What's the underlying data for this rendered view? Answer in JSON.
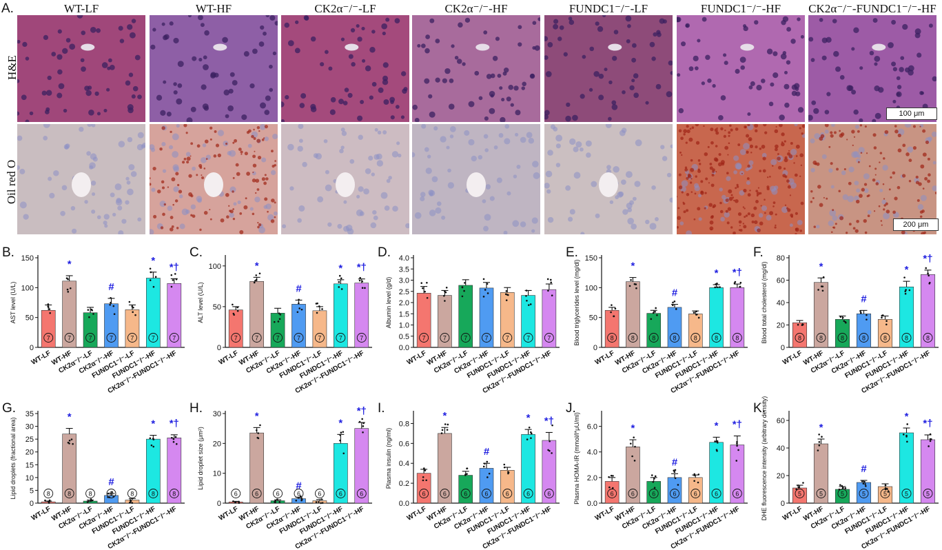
{
  "figure": {
    "panel_A_letter": "A.",
    "group_titles": [
      "WT-LF",
      "WT-HF",
      "CK2α⁻/⁻-LF",
      "CK2α⁻/⁻-HF",
      "FUNDC1⁻/⁻-LF",
      "FUNDC1⁻/⁻-HF",
      "CK2α⁻/⁻-FUNDC1⁻/⁻-HF"
    ],
    "row_labels": [
      "H&E",
      "Oil red O"
    ],
    "scalebar_he": "100 μm",
    "scalebar_oil": "200 μm",
    "colors": {
      "he_base": [
        "#a0477a",
        "#8e5fa6",
        "#a44a7c",
        "#a86b9c",
        "#8e4b79",
        "#b069b0",
        "#9d5ba6"
      ],
      "oil_base": [
        "#c9bdc0",
        "#d6a39c",
        "#cdbcc2",
        "#bfb5c2",
        "#cbbfc1",
        "#c8674e",
        "#c89483"
      ],
      "bars": [
        "#f4766f",
        "#cba79f",
        "#17a85a",
        "#4f9bf2",
        "#f6b88a",
        "#1de7e2",
        "#d588f0"
      ],
      "star_blue": "#1f1fe0"
    }
  },
  "chart_data": [
    {
      "panel": "B.",
      "type": "bar",
      "ylabel": "AST level (U/L)",
      "ylim": [
        0,
        150
      ],
      "yticks": [
        "0",
        "50",
        "100",
        "150"
      ],
      "categories": [
        "WT-LF",
        "WT-HF",
        "CK2α⁻/⁻-LF",
        "CK2α⁻/⁻-HF",
        "FUNDC1⁻/⁻-LF",
        "FUNDC1⁻/⁻-HF",
        "CK2α⁻/⁻-FUNDC1⁻/⁻-HF"
      ],
      "values": [
        62,
        111,
        58,
        73,
        63,
        116,
        107
      ],
      "errors": [
        9,
        9,
        9,
        9,
        8,
        10,
        8
      ],
      "n": [
        "7",
        "7",
        "7",
        "7",
        "7",
        "7",
        "7"
      ],
      "marks": [
        "",
        "*",
        "",
        "#",
        "",
        "*",
        "*†"
      ]
    },
    {
      "panel": "C.",
      "type": "bar",
      "ylabel": "ALT level (U/L)",
      "ylim": [
        0,
        110
      ],
      "yticks": [
        "0",
        "50",
        "100"
      ],
      "categories": [
        "WT-LF",
        "WT-HF",
        "CK2α⁻/⁻-LF",
        "CK2α⁻/⁻-HF",
        "FUNDC1⁻/⁻-LF",
        "FUNDC1⁻/⁻-HF",
        "CK2α⁻/⁻-FUNDC1⁻/⁻-HF"
      ],
      "values": [
        46,
        81,
        42,
        53,
        45,
        78,
        79
      ],
      "errors": [
        4,
        5,
        6,
        5,
        5,
        5,
        5
      ],
      "n": [
        "7",
        "7",
        "7",
        "7",
        "7",
        "7",
        "7"
      ],
      "marks": [
        "",
        "*",
        "",
        "#",
        "",
        "*",
        "*†"
      ]
    },
    {
      "panel": "D.",
      "type": "bar",
      "ylabel": "Albumin level (g/d)",
      "ylim": [
        0,
        4
      ],
      "yticks": [
        "0.0",
        "0.5",
        "1.0",
        "1.5",
        "2.0",
        "2.5",
        "3.0",
        "3.5",
        "4.0"
      ],
      "categories": [
        "WT-LF",
        "WT-HF",
        "CK2α⁻/⁻-LF",
        "CK2α⁻/⁻-HF",
        "FUNDC1⁻/⁻-LF",
        "FUNDC1⁻/⁻-HF",
        "CK2α⁻/⁻-FUNDC1⁻/⁻-HF"
      ],
      "values": [
        2.42,
        2.32,
        2.77,
        2.65,
        2.45,
        2.32,
        2.58
      ],
      "errors": [
        0.3,
        0.22,
        0.25,
        0.25,
        0.22,
        0.22,
        0.25
      ],
      "n": [
        "7",
        "7",
        "7",
        "7",
        "7",
        "7",
        "7"
      ],
      "marks": [
        "",
        "",
        "",
        "",
        "",
        "",
        ""
      ]
    },
    {
      "panel": "E.",
      "type": "bar",
      "ylabel": "Blood triglycerides level (mg/dl)",
      "ylim": [
        0,
        150
      ],
      "yticks": [
        "0",
        "50",
        "100",
        "150"
      ],
      "categories": [
        "WT-LF",
        "WT-HF",
        "CK2α⁻/⁻-LF",
        "CK2α⁻/⁻-HF",
        "FUNDC1⁻/⁻-LF",
        "FUNDC1⁻/⁻-HF",
        "CK2α⁻/⁻-FUNDC1⁻/⁻-HF"
      ],
      "values": [
        62,
        110,
        57,
        67,
        56,
        100,
        100
      ],
      "errors": [
        5,
        7,
        5,
        5,
        5,
        5,
        6
      ],
      "n": [
        "8",
        "8",
        "8",
        "8",
        "8",
        "8",
        "8"
      ],
      "marks": [
        "",
        "*",
        "",
        "#",
        "",
        "*",
        "*†"
      ]
    },
    {
      "panel": "F.",
      "type": "bar",
      "ylabel": "Blood total cholesterol (mg/dl)",
      "ylim": [
        0,
        80
      ],
      "yticks": [
        "0",
        "20",
        "40",
        "60",
        "80"
      ],
      "categories": [
        "WT-LF",
        "WT-HF",
        "CK2α⁻/⁻-LF",
        "CK2α⁻/⁻-HF",
        "FUNDC1⁻/⁻-LF",
        "FUNDC1⁻/⁻-HF",
        "CK2α⁻/⁻-FUNDC1⁻/⁻-HF"
      ],
      "values": [
        22,
        58,
        25,
        30,
        25,
        54,
        65
      ],
      "errors": [
        2,
        4,
        3,
        3,
        3,
        5,
        4
      ],
      "n": [
        "8",
        "8",
        "8",
        "8",
        "8",
        "8",
        "8"
      ],
      "marks": [
        "",
        "*",
        "",
        "#",
        "",
        "*",
        "*†"
      ]
    },
    {
      "panel": "G.",
      "type": "bar",
      "ylabel": "Lipid droplets (fractional area)",
      "ylim": [
        0,
        35
      ],
      "yticks": [
        "0",
        "5",
        "10",
        "15",
        "20",
        "25",
        "30",
        "35"
      ],
      "categories": [
        "WT-LF",
        "WT-HF",
        "CK2α⁻/⁻-LF",
        "CK2α⁻/⁻-HF",
        "FUNDC1⁻/⁻-LF",
        "FUNDC1⁻/⁻-HF",
        "CK2α⁻/⁻-FUNDC1⁻/⁻-HF"
      ],
      "values": [
        0.5,
        27,
        0.8,
        3,
        1.2,
        25,
        25.5
      ],
      "errors": [
        0.3,
        2.2,
        0.4,
        0.8,
        0.6,
        1.5,
        1.2
      ],
      "n": [
        "8",
        "8",
        "8",
        "8",
        "8",
        "8",
        "8"
      ],
      "marks": [
        "",
        "*",
        "",
        "#",
        "",
        "*",
        "*†"
      ]
    },
    {
      "panel": "H.",
      "type": "bar",
      "ylabel": "Lipid droplet size (μm²)",
      "ylim": [
        0,
        30
      ],
      "yticks": [
        "0",
        "10",
        "20",
        "30"
      ],
      "categories": [
        "WT-LF",
        "WT-HF",
        "CK2α⁻/⁻-LF",
        "CK2α⁻/⁻-HF",
        "FUNDC1⁻/⁻-LF",
        "FUNDC1⁻/⁻-HF",
        "CK2α⁻/⁻-FUNDC1⁻/⁻-HF"
      ],
      "values": [
        0.4,
        23.5,
        0.8,
        1.5,
        0.8,
        20,
        25
      ],
      "errors": [
        0.2,
        1.8,
        0.3,
        0.5,
        0.4,
        3,
        2
      ],
      "n": [
        "6",
        "6",
        "6",
        "6",
        "6",
        "6",
        "6"
      ],
      "marks": [
        "",
        "*",
        "",
        "#",
        "",
        "*",
        "*†"
      ]
    },
    {
      "panel": "I.",
      "type": "bar",
      "ylabel": "Plasma insulin (ng/ml)",
      "ylim": [
        0,
        0.9
      ],
      "yticks": [
        "0.0",
        "0.2",
        "0.4",
        "0.6",
        "0.8"
      ],
      "categories": [
        "WT-LF",
        "WT-HF",
        "CK2α⁻/⁻-LF",
        "CK2α⁻/⁻-HF",
        "FUNDC1⁻/⁻-LF",
        "FUNDC1⁻/⁻-HF",
        "CK2α⁻/⁻-FUNDC1⁻/⁻-HF"
      ],
      "values": [
        0.3,
        0.7,
        0.28,
        0.35,
        0.33,
        0.69,
        0.63
      ],
      "errors": [
        0.04,
        0.06,
        0.04,
        0.05,
        0.03,
        0.05,
        0.08
      ],
      "n": [
        "6",
        "6",
        "6",
        "6",
        "6",
        "6",
        "6"
      ],
      "marks": [
        "",
        "*",
        "",
        "#",
        "",
        "*",
        "*†"
      ]
    },
    {
      "panel": "J.",
      "type": "bar",
      "ylabel": "Plasma HOMA-IR (mmol/l*μU/ml)",
      "ylim": [
        0,
        7
      ],
      "yticks": [
        "0.0",
        "2.0",
        "4.0",
        "6.0"
      ],
      "categories": [
        "WT-LF",
        "WT-HF",
        "CK2α⁻/⁻-LF",
        "CK2α⁻/⁻-HF",
        "FUNDC1⁻/⁻-LF",
        "FUNDC1⁻/⁻-HF",
        "CK2α⁻/⁻-FUNDC1⁻/⁻-HF"
      ],
      "values": [
        1.7,
        4.4,
        1.7,
        2.0,
        2.0,
        4.75,
        4.55
      ],
      "errors": [
        0.3,
        0.55,
        0.3,
        0.3,
        0.2,
        0.4,
        0.7
      ],
      "n": [
        "6",
        "6",
        "6",
        "6",
        "6",
        "6",
        "6"
      ],
      "marks": [
        "",
        "*",
        "",
        "#",
        "",
        "*",
        "*†"
      ]
    },
    {
      "panel": "K.",
      "type": "bar",
      "ylabel": "DHE fluorescence intensity (arbitrary density)",
      "ylim": [
        0,
        65
      ],
      "yticks": [
        "0",
        "20",
        "40",
        "60"
      ],
      "categories": [
        "WT-LF",
        "WT-HF",
        "CK2α⁻/⁻-LF",
        "CK2α⁻/⁻-HF",
        "FUNDC1⁻/⁻-LF",
        "FUNDC1⁻/⁻-HF",
        "CK2α⁻/⁻-FUNDC1⁻/⁻-HF"
      ],
      "values": [
        11,
        43,
        10,
        15,
        12,
        51,
        46
      ],
      "errors": [
        2,
        3.5,
        2,
        1.5,
        2,
        3.5,
        3.5
      ],
      "n": [
        "5",
        "5",
        "5",
        "5",
        "5",
        "5",
        "5"
      ],
      "marks": [
        "",
        "*",
        "",
        "#",
        "",
        "*",
        "*†"
      ]
    }
  ]
}
